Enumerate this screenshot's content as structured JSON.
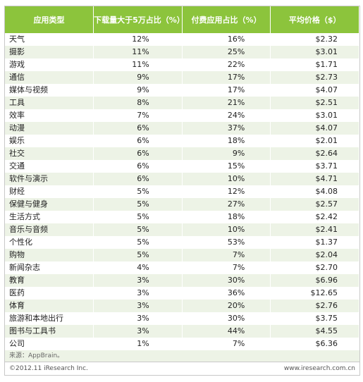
{
  "table": {
    "header": [
      "应用类型",
      "下载量大于5万占比（%）",
      "付费应用占比（%）",
      "平均价格（$）"
    ],
    "rows": [
      [
        "天气",
        "12%",
        "16%",
        "$2.32"
      ],
      [
        "摄影",
        "11%",
        "25%",
        "$3.01"
      ],
      [
        "游戏",
        "11%",
        "22%",
        "$1.71"
      ],
      [
        "通信",
        "9%",
        "17%",
        "$2.73"
      ],
      [
        "媒体与视频",
        "9%",
        "17%",
        "$4.07"
      ],
      [
        "工具",
        "8%",
        "21%",
        "$2.51"
      ],
      [
        "效率",
        "7%",
        "24%",
        "$3.01"
      ],
      [
        "动漫",
        "6%",
        "37%",
        "$4.07"
      ],
      [
        "娱乐",
        "6%",
        "18%",
        "$2.01"
      ],
      [
        "社交",
        "6%",
        "9%",
        "$2.64"
      ],
      [
        "交通",
        "6%",
        "15%",
        "$3.71"
      ],
      [
        "软件与演示",
        "6%",
        "10%",
        "$4.71"
      ],
      [
        "财经",
        "5%",
        "12%",
        "$4.08"
      ],
      [
        "保健与健身",
        "5%",
        "27%",
        "$2.57"
      ],
      [
        "生活方式",
        "5%",
        "18%",
        "$2.42"
      ],
      [
        "音乐与音频",
        "5%",
        "10%",
        "$2.41"
      ],
      [
        "个性化",
        "5%",
        "53%",
        "$1.37"
      ],
      [
        "购物",
        "5%",
        "7%",
        "$2.04"
      ],
      [
        "新闻杂志",
        "4%",
        "7%",
        "$2.70"
      ],
      [
        "教育",
        "3%",
        "30%",
        "$6.96"
      ],
      [
        "医药",
        "3%",
        "36%",
        "$12.65"
      ],
      [
        "体育",
        "3%",
        "20%",
        "$2.76"
      ],
      [
        "旅游和本地出行",
        "3%",
        "30%",
        "$3.75"
      ],
      [
        "图书与工具书",
        "3%",
        "44%",
        "$4.55"
      ],
      [
        "公司",
        "1%",
        "7%",
        "$6.36"
      ]
    ]
  },
  "source": "来源：AppBrain。",
  "footer": {
    "copyright": "©2012.11 iResearch Inc.",
    "url": "www.iresearch.com.cn"
  }
}
